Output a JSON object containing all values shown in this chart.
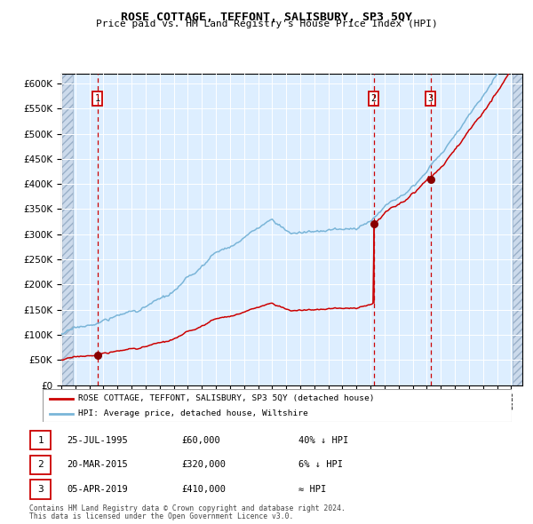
{
  "title": "ROSE COTTAGE, TEFFONT, SALISBURY, SP3 5QY",
  "subtitle": "Price paid vs. HM Land Registry's House Price Index (HPI)",
  "legend_line1": "ROSE COTTAGE, TEFFONT, SALISBURY, SP3 5QY (detached house)",
  "legend_line2": "HPI: Average price, detached house, Wiltshire",
  "footer1": "Contains HM Land Registry data © Crown copyright and database right 2024.",
  "footer2": "This data is licensed under the Open Government Licence v3.0.",
  "sale_dates": [
    "25-JUL-1995",
    "20-MAR-2015",
    "05-APR-2019"
  ],
  "sale_prices": [
    60000,
    320000,
    410000
  ],
  "sale_hpi_relations": [
    "40% ↓ HPI",
    "6% ↓ HPI",
    "≈ HPI"
  ],
  "sale_years": [
    1995.56,
    2015.22,
    2019.26
  ],
  "hpi_color": "#7ab5d8",
  "price_color": "#cc0000",
  "sale_dot_color": "#880000",
  "vline_color": "#cc0000",
  "background_color": "#ddeeff",
  "grid_color": "#ffffff",
  "ylim": [
    0,
    620000
  ],
  "yticks": [
    0,
    50000,
    100000,
    150000,
    200000,
    250000,
    300000,
    350000,
    400000,
    450000,
    500000,
    550000,
    600000
  ],
  "xlim_start": 1993.0,
  "xlim_end": 2025.8
}
